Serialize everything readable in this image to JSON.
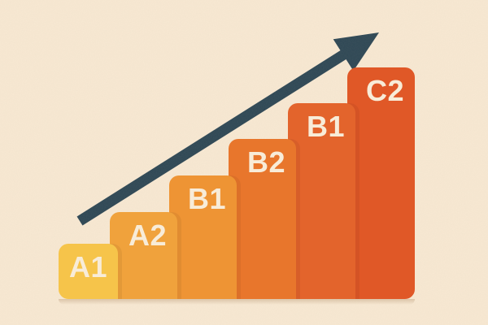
{
  "chart_data": {
    "type": "bar",
    "title": "",
    "categories": [
      "A1",
      "A2",
      "B1",
      "B2",
      "B1",
      "C2"
    ],
    "values": [
      68,
      107,
      152,
      197,
      241,
      285
    ],
    "unit": "px-height (no axes shown)",
    "bar_colors": [
      "#f6c44a",
      "#f0a23c",
      "#ee9434",
      "#e8762c",
      "#e3642c",
      "#e05827"
    ],
    "xlabel": "",
    "ylabel": "",
    "axes_visible": false,
    "gridlines": false,
    "legend": false,
    "layout_hint": "six adjacent rounded bars ascending left to right on a common baseline, diagonal upward arrow overlay from lower-left to upper-right"
  },
  "icons": {
    "growth_arrow": "diagonal-up-right-trend-arrow"
  },
  "colors": {
    "background": "#f8e9d3",
    "arrow": "#2c4654",
    "label": "#f8ecd8"
  }
}
